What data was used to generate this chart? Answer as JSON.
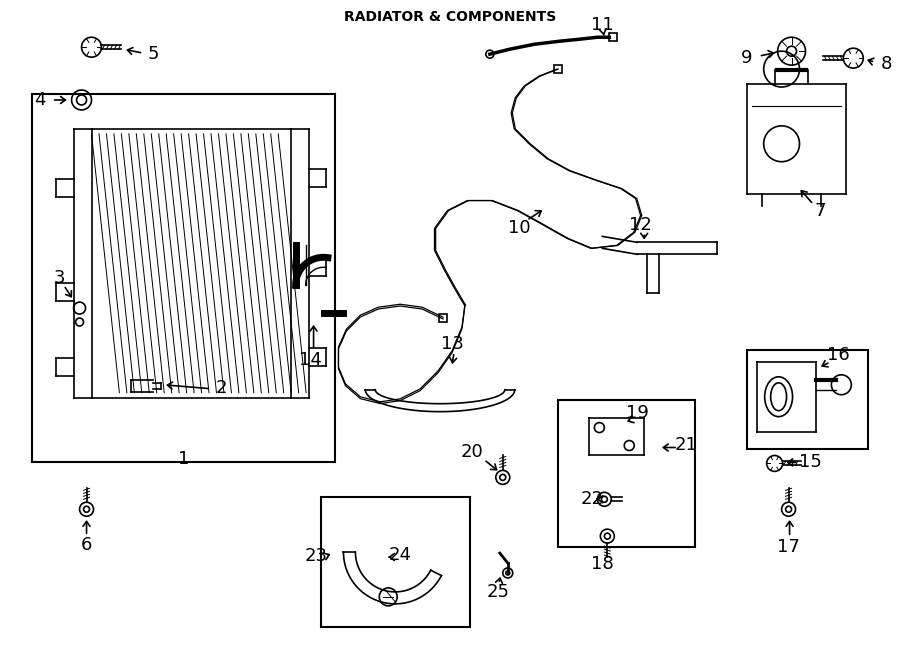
{
  "title": "RADIATOR & COMPONENTS",
  "bg_color": "#ffffff",
  "line_color": "#000000",
  "fig_w": 9.0,
  "fig_h": 6.61,
  "dpi": 100,
  "xlim": [
    0,
    900
  ],
  "ylim": [
    0,
    661
  ]
}
